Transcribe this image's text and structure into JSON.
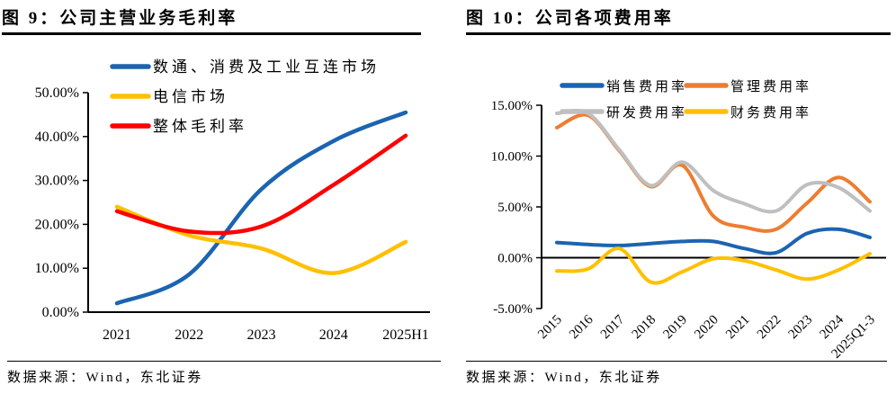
{
  "panels": [
    {
      "title": "图 9：公司主营业务毛利率",
      "source": "数据来源：Wind，东北证券"
    },
    {
      "title": "图 10：公司各项费用率",
      "source": "数据来源：Wind，东北证券"
    }
  ],
  "chart_data": [
    {
      "type": "line",
      "title": "图 9：公司主营业务毛利率",
      "categories": [
        "2021",
        "2022",
        "2023",
        "2024",
        "2025H1"
      ],
      "series": [
        {
          "name": "数通、消费及工业互连市场",
          "color": "#1B64B1",
          "values": [
            2.0,
            8.6,
            28.0,
            39.0,
            45.5
          ]
        },
        {
          "name": "电信市场",
          "color": "#FFC000",
          "values": [
            24.0,
            17.5,
            14.5,
            8.9,
            16.0
          ]
        },
        {
          "name": "整体毛利率",
          "color": "#FE0000",
          "values": [
            23.0,
            18.4,
            19.5,
            29.0,
            40.2
          ]
        }
      ],
      "ylim": [
        0,
        50
      ],
      "y_tick_values": [
        0,
        10,
        20,
        30,
        40,
        50
      ],
      "y_tick_labels": [
        "0.00%",
        "10.00%",
        "20.00%",
        "30.00%",
        "40.00%",
        "50.00%"
      ],
      "x_axis_at": 0,
      "grid": false,
      "smooth": true,
      "legend_position": "top-left-vertical",
      "unit": "percent"
    },
    {
      "type": "line",
      "title": "图 10：公司各项费用率",
      "categories": [
        "2015",
        "2016",
        "2017",
        "2018",
        "2019",
        "2020",
        "2021",
        "2022",
        "2023",
        "2024",
        "2025Q1-3"
      ],
      "series": [
        {
          "name": "销售费用率",
          "color": "#1B64B1",
          "values": [
            1.5,
            1.3,
            1.2,
            1.4,
            1.6,
            1.6,
            0.9,
            0.5,
            2.4,
            2.8,
            2.0
          ]
        },
        {
          "name": "管理费用率",
          "color": "#ED7D31",
          "values": [
            12.8,
            14.0,
            10.5,
            7.0,
            9.1,
            4.1,
            3.0,
            2.8,
            5.4,
            7.9,
            5.5
          ]
        },
        {
          "name": "研发费用率",
          "color": "#BFBFBF",
          "values": [
            14.2,
            14.2,
            10.6,
            7.1,
            9.4,
            6.6,
            5.3,
            4.6,
            7.2,
            6.9,
            4.6
          ]
        },
        {
          "name": "财务费用率",
          "color": "#FFC000",
          "values": [
            -1.3,
            -1.1,
            0.9,
            -2.4,
            -1.4,
            -0.1,
            -0.3,
            -1.2,
            -2.1,
            -1.2,
            0.4
          ]
        }
      ],
      "ylim": [
        -5,
        15
      ],
      "y_tick_values": [
        -5,
        0,
        5,
        10,
        15
      ],
      "y_tick_labels": [
        "-5.00%",
        "0.00%",
        "5.00%",
        "10.00%",
        "15.00%"
      ],
      "x_axis_at": 0,
      "x_label_rotation": -45,
      "grid": false,
      "smooth": true,
      "legend_position": "top-center-two-column",
      "unit": "percent"
    }
  ]
}
